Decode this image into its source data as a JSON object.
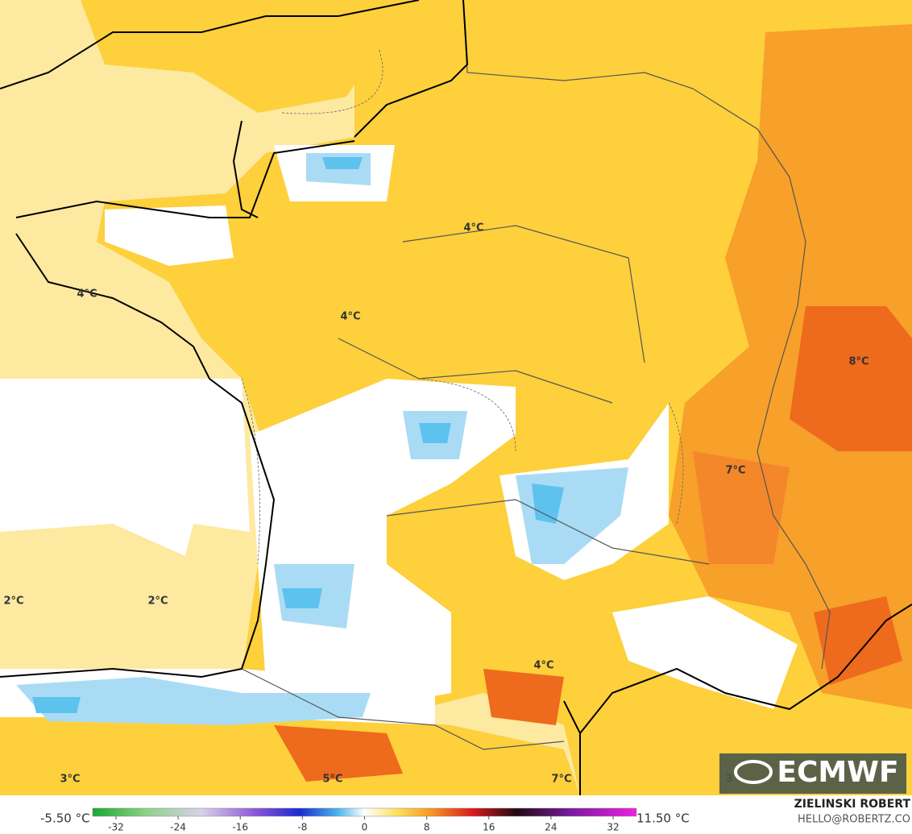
{
  "map_labels": [
    "4°C",
    "4°C",
    "4°C",
    "8°C",
    "7°C",
    "2°C",
    "2°C",
    "4°C",
    "3°C",
    "5°C",
    "7°C",
    "3"
  ],
  "logo": "ECMWF",
  "colorbar": {
    "min_label": "-5.50 °C",
    "max_label": "11.50 °C",
    "range": [
      -35,
      35
    ],
    "ticks": [
      -32,
      -24,
      -16,
      -8,
      0,
      8,
      16,
      24,
      32
    ]
  },
  "credit": {
    "author": "ZIELINSKI ROBERT",
    "contact": "HELLO@ROBERTZ.CO"
  }
}
